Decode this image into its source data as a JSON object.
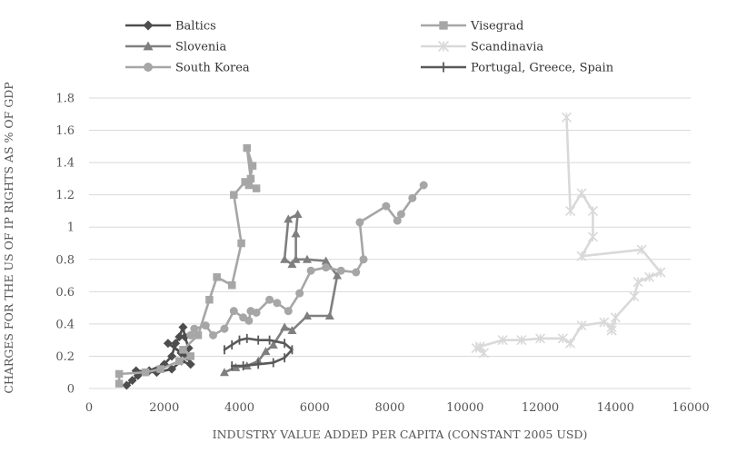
{
  "chart_data": {
    "type": "scatter",
    "title": "",
    "xlabel": "INDUSTRY VALUE ADDED PER CAPITA (CONSTANT 2005 USD)",
    "ylabel": "CHARGES FOR THE US OF IP RIGHTS AS % OF GDP",
    "xlim": [
      0,
      16000
    ],
    "ylim": [
      0,
      1.8
    ],
    "x_ticks": [
      "0",
      "2000",
      "4000",
      "6000",
      "8000",
      "10000",
      "12000",
      "14000",
      "16000"
    ],
    "y_ticks": [
      "0",
      "0.2",
      "0.4",
      "0.6",
      "0.8",
      "1",
      "1.2",
      "1.4",
      "1.6",
      "1.8"
    ],
    "grid": "horizontal",
    "legend_position": "top",
    "series": [
      {
        "name": "Baltics",
        "color": "#4d4d4d",
        "marker": "diamond",
        "points": [
          {
            "x": 1000,
            "y": 0.02
          },
          {
            "x": 1150,
            "y": 0.05
          },
          {
            "x": 1300,
            "y": 0.08
          },
          {
            "x": 1600,
            "y": 0.11
          },
          {
            "x": 2000,
            "y": 0.15
          },
          {
            "x": 2200,
            "y": 0.2
          },
          {
            "x": 2300,
            "y": 0.28
          },
          {
            "x": 2400,
            "y": 0.32
          },
          {
            "x": 2500,
            "y": 0.38
          },
          {
            "x": 2550,
            "y": 0.32
          },
          {
            "x": 2650,
            "y": 0.25
          },
          {
            "x": 2450,
            "y": 0.22
          },
          {
            "x": 2100,
            "y": 0.28
          },
          {
            "x": 2600,
            "y": 0.2
          },
          {
            "x": 2700,
            "y": 0.15
          },
          {
            "x": 2450,
            "y": 0.17
          },
          {
            "x": 2200,
            "y": 0.12
          },
          {
            "x": 1800,
            "y": 0.1
          },
          {
            "x": 1250,
            "y": 0.11
          }
        ]
      },
      {
        "name": "Visegrad",
        "color": "#a6a6a6",
        "marker": "square",
        "points": [
          {
            "x": 800,
            "y": 0.03
          },
          {
            "x": 800,
            "y": 0.09
          },
          {
            "x": 1500,
            "y": 0.1
          },
          {
            "x": 1900,
            "y": 0.12
          },
          {
            "x": 2400,
            "y": 0.17
          },
          {
            "x": 2700,
            "y": 0.2
          },
          {
            "x": 2500,
            "y": 0.24
          },
          {
            "x": 2900,
            "y": 0.33
          },
          {
            "x": 3200,
            "y": 0.55
          },
          {
            "x": 3400,
            "y": 0.69
          },
          {
            "x": 3800,
            "y": 0.64
          },
          {
            "x": 4050,
            "y": 0.9
          },
          {
            "x": 3850,
            "y": 1.2
          },
          {
            "x": 4150,
            "y": 1.28
          },
          {
            "x": 4300,
            "y": 1.3
          },
          {
            "x": 4200,
            "y": 1.49
          },
          {
            "x": 4350,
            "y": 1.38
          },
          {
            "x": 4250,
            "y": 1.26
          },
          {
            "x": 4450,
            "y": 1.24
          }
        ]
      },
      {
        "name": "Slovenia",
        "color": "#7f7f7f",
        "marker": "triangle",
        "points": [
          {
            "x": 3600,
            "y": 0.1
          },
          {
            "x": 3900,
            "y": 0.13
          },
          {
            "x": 4200,
            "y": 0.14
          },
          {
            "x": 4500,
            "y": 0.17
          },
          {
            "x": 4700,
            "y": 0.23
          },
          {
            "x": 4900,
            "y": 0.27
          },
          {
            "x": 5200,
            "y": 0.38
          },
          {
            "x": 5400,
            "y": 0.36
          },
          {
            "x": 5800,
            "y": 0.45
          },
          {
            "x": 6400,
            "y": 0.45
          },
          {
            "x": 6600,
            "y": 0.7
          },
          {
            "x": 6300,
            "y": 0.79
          },
          {
            "x": 5800,
            "y": 0.8
          },
          {
            "x": 5500,
            "y": 0.8
          },
          {
            "x": 5500,
            "y": 0.96
          },
          {
            "x": 5550,
            "y": 1.08
          },
          {
            "x": 5300,
            "y": 1.05
          },
          {
            "x": 5200,
            "y": 0.8
          },
          {
            "x": 5400,
            "y": 0.77
          }
        ]
      },
      {
        "name": "Scandinavia",
        "color": "#d9d9d9",
        "marker": "star",
        "points": [
          {
            "x": 10300,
            "y": 0.25
          },
          {
            "x": 10500,
            "y": 0.22
          },
          {
            "x": 10400,
            "y": 0.26
          },
          {
            "x": 11000,
            "y": 0.3
          },
          {
            "x": 11500,
            "y": 0.3
          },
          {
            "x": 12000,
            "y": 0.31
          },
          {
            "x": 12600,
            "y": 0.31
          },
          {
            "x": 12800,
            "y": 0.28
          },
          {
            "x": 13100,
            "y": 0.39
          },
          {
            "x": 13700,
            "y": 0.41
          },
          {
            "x": 13900,
            "y": 0.38
          },
          {
            "x": 13900,
            "y": 0.36
          },
          {
            "x": 14000,
            "y": 0.44
          },
          {
            "x": 14500,
            "y": 0.57
          },
          {
            "x": 14600,
            "y": 0.66
          },
          {
            "x": 14900,
            "y": 0.69
          },
          {
            "x": 15200,
            "y": 0.72
          },
          {
            "x": 14700,
            "y": 0.86
          },
          {
            "x": 13100,
            "y": 0.82
          },
          {
            "x": 13400,
            "y": 0.94
          },
          {
            "x": 13400,
            "y": 1.1
          },
          {
            "x": 13100,
            "y": 1.21
          },
          {
            "x": 12800,
            "y": 1.1
          },
          {
            "x": 12700,
            "y": 1.68
          }
        ]
      },
      {
        "name": "South Korea",
        "color": "#a6a6a6",
        "marker": "circle",
        "points": [
          {
            "x": 2700,
            "y": 0.33
          },
          {
            "x": 2800,
            "y": 0.37
          },
          {
            "x": 3100,
            "y": 0.39
          },
          {
            "x": 3300,
            "y": 0.33
          },
          {
            "x": 3600,
            "y": 0.37
          },
          {
            "x": 3850,
            "y": 0.48
          },
          {
            "x": 4100,
            "y": 0.44
          },
          {
            "x": 4250,
            "y": 0.42
          },
          {
            "x": 4300,
            "y": 0.48
          },
          {
            "x": 4450,
            "y": 0.47
          },
          {
            "x": 4800,
            "y": 0.55
          },
          {
            "x": 5000,
            "y": 0.53
          },
          {
            "x": 5300,
            "y": 0.48
          },
          {
            "x": 5600,
            "y": 0.59
          },
          {
            "x": 5900,
            "y": 0.73
          },
          {
            "x": 6300,
            "y": 0.75
          },
          {
            "x": 6700,
            "y": 0.73
          },
          {
            "x": 7100,
            "y": 0.72
          },
          {
            "x": 7300,
            "y": 0.8
          },
          {
            "x": 7200,
            "y": 1.03
          },
          {
            "x": 7900,
            "y": 1.13
          },
          {
            "x": 8200,
            "y": 1.04
          },
          {
            "x": 8300,
            "y": 1.08
          },
          {
            "x": 8600,
            "y": 1.18
          },
          {
            "x": 8900,
            "y": 1.26
          }
        ]
      },
      {
        "name": "Portugal, Greece, Spain",
        "color": "#595959",
        "marker": "plus",
        "points": [
          {
            "x": 3600,
            "y": 0.24
          },
          {
            "x": 3800,
            "y": 0.27
          },
          {
            "x": 4000,
            "y": 0.3
          },
          {
            "x": 4200,
            "y": 0.31
          },
          {
            "x": 4500,
            "y": 0.3
          },
          {
            "x": 4800,
            "y": 0.3
          },
          {
            "x": 5200,
            "y": 0.28
          },
          {
            "x": 5400,
            "y": 0.24
          },
          {
            "x": 5200,
            "y": 0.19
          },
          {
            "x": 4900,
            "y": 0.16
          },
          {
            "x": 4500,
            "y": 0.15
          },
          {
            "x": 4100,
            "y": 0.14
          },
          {
            "x": 3800,
            "y": 0.14
          }
        ]
      }
    ]
  }
}
